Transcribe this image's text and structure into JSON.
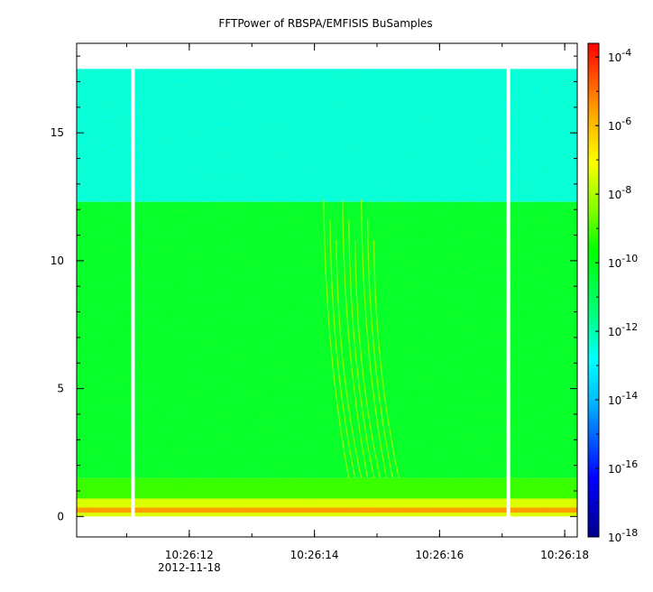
{
  "chart_data": {
    "type": "heatmap",
    "title": "FFTPower of RBSPA/EMFISIS  BuSamples",
    "xlabel": "",
    "ylabel": "",
    "x_start": "10:26:10.2",
    "x_end": "10:26:18.2",
    "x_ticks": [
      "10:26:12",
      "10:26:14",
      "10:26:16",
      "10:26:18"
    ],
    "x_date_label": "2012-11-18",
    "ylim": [
      -0.8,
      18.5
    ],
    "y_ticks": [
      0,
      5,
      10,
      15
    ],
    "y_ticks_labels": [
      "0",
      "5",
      "10",
      "15"
    ],
    "data_gaps_x": [
      "10:26:11.1",
      "10:26:17.1"
    ],
    "data_ymax": 17.5,
    "bands": [
      {
        "y_from": 12.3,
        "y_to": 17.5,
        "level": -12.5,
        "description": "cyan-green upper band"
      },
      {
        "y_from": 1.5,
        "y_to": 12.3,
        "level": -10.3,
        "description": "green middle band"
      },
      {
        "y_from": 0.7,
        "y_to": 1.5,
        "level": -9.2,
        "description": "yellow-green"
      },
      {
        "y_from": 0.0,
        "y_to": 0.7,
        "level": -7.5,
        "description": "orange-red low-frequency band"
      }
    ],
    "chorus_features": {
      "x_range": [
        "10:26:14.2",
        "10:26:15.0"
      ],
      "y_range": [
        1.5,
        12.4
      ],
      "level": -8.2
    },
    "colorbar": {
      "scale": "log",
      "range": [
        -18,
        -3.6
      ],
      "ticks": [
        "-4",
        "-6",
        "-8",
        "-10",
        "-12",
        "-14",
        "-16",
        "-18"
      ],
      "base": "10",
      "colors": [
        "#00008b",
        "#0000ff",
        "#00bfff",
        "#00ffff",
        "#00ff7f",
        "#00ff00",
        "#7fff00",
        "#ffff00",
        "#ffa500",
        "#ff0000"
      ]
    }
  }
}
